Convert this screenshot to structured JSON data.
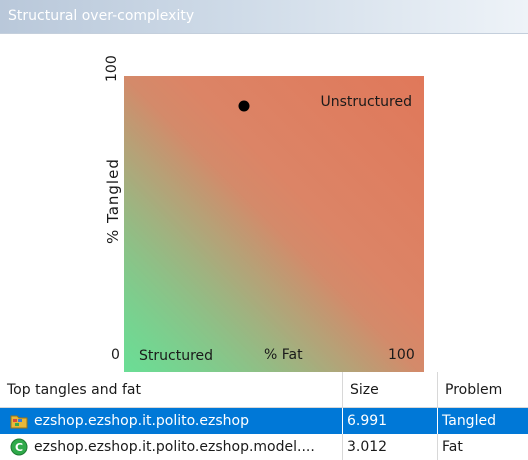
{
  "panel": {
    "title": "Structural over-complexity"
  },
  "chart_data": {
    "type": "scatter",
    "title": "",
    "xlabel": "% Fat",
    "ylabel": "% Tangled",
    "xlim": [
      0,
      100
    ],
    "ylim": [
      0,
      100
    ],
    "x_ticks": [
      "0",
      "100"
    ],
    "y_ticks": [
      "100"
    ],
    "annotations": {
      "top_right": "Unstructured",
      "bottom_left": "Structured"
    },
    "gradient_colors": {
      "structured": "#6ade96",
      "unstructured": "#e0785a"
    },
    "points": [
      {
        "x": 40,
        "y": 90
      }
    ],
    "grid": false,
    "legend": "none"
  },
  "table": {
    "headers": {
      "name": "Top tangles and fat",
      "size": "Size",
      "problem": "Problem"
    },
    "rows": [
      {
        "icon": "package-folder-icon",
        "name": "ezshop.ezshop.it.polito.ezshop",
        "size": "6.991",
        "problem": "Tangled",
        "selected": true
      },
      {
        "icon": "class-icon",
        "name": "ezshop.ezshop.it.polito.ezshop.model....",
        "size": "3.012",
        "problem": "Fat",
        "selected": false
      }
    ]
  }
}
